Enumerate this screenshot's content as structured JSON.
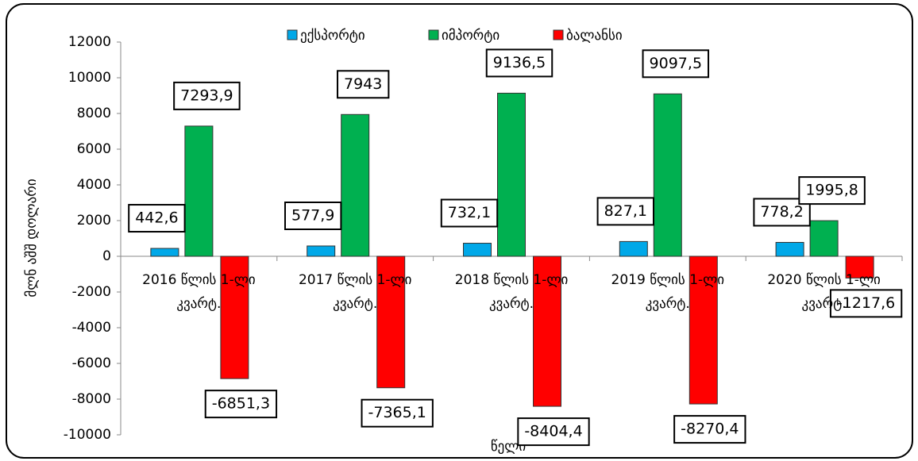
{
  "chart_data": {
    "type": "bar",
    "y_label": "მლნ აშშ დოლარი",
    "x_label": "წელი",
    "categories": [
      "2016 წლის 1-ლი კვარტ.",
      "2017 წლის 1-ლი კვარტ.",
      "2018 წლის 1-ლი კვარტ.",
      "2019 წლის 1-ლი კვარტ.",
      "2020 წლის 1-ლი კვარტ."
    ],
    "series": [
      {
        "name": "ექსპორტი",
        "color": "#00a8e8",
        "values": [
          442.6,
          577.9,
          732.1,
          827.1,
          778.2
        ],
        "value_labels": [
          "442,6",
          "577,9",
          "732,1",
          "827,1",
          "778,2"
        ]
      },
      {
        "name": "იმპორტი",
        "color": "#00b050",
        "values": [
          7293.9,
          7943,
          9136.5,
          9097.5,
          1995.8
        ],
        "value_labels": [
          "7293,9",
          "7943",
          "9136,5",
          "9097,5",
          "1995,8"
        ]
      },
      {
        "name": "ბალანსი",
        "color": "#ff0000",
        "values": [
          -6851.3,
          -7365.1,
          -8404.4,
          -8270.4,
          -1217.6
        ],
        "value_labels": [
          "-6851,3",
          "-7365,1",
          "-8404,4",
          "-8270,4",
          "-1217,6"
        ]
      }
    ],
    "ylim": [
      -10000,
      12000
    ],
    "yticks": [
      -10000,
      -8000,
      -6000,
      -4000,
      -2000,
      0,
      2000,
      4000,
      6000,
      8000,
      10000,
      12000
    ],
    "legend": "top",
    "grid": false
  }
}
